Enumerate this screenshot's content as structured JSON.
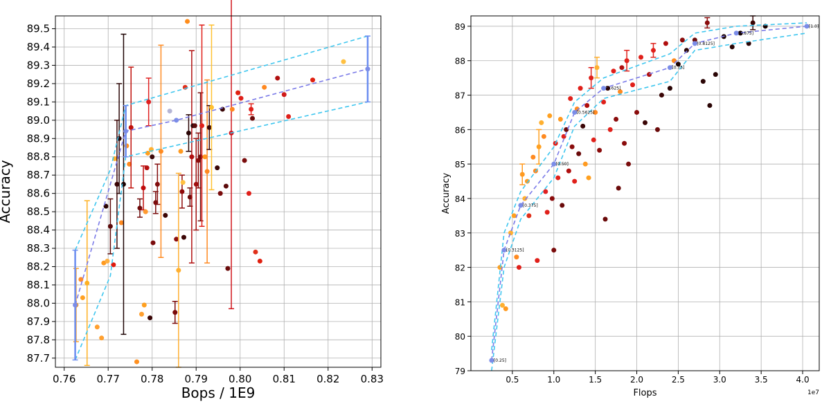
{
  "chart_data": [
    {
      "type": "scatter",
      "xlabel": "Bops / 1E9",
      "ylabel": "Accuracy",
      "xlim": [
        0.758,
        0.832
      ],
      "ylim": [
        87.65,
        89.57
      ],
      "xticks": [
        "0.76",
        "0.77",
        "0.78",
        "0.79",
        "0.80",
        "0.81",
        "0.82",
        "0.83"
      ],
      "yticks": [
        "87.7",
        "87.8",
        "87.9",
        "88.0",
        "88.1",
        "88.2",
        "88.3",
        "88.4",
        "88.5",
        "88.6",
        "88.7",
        "88.8",
        "88.9",
        "89.0",
        "89.1",
        "89.2",
        "89.3",
        "89.4",
        "89.5"
      ],
      "grid": true,
      "points": [
        {
          "x": 0.7627,
          "y": 87.99,
          "c": "#ff9c1a",
          "e": 0.2
        },
        {
          "x": 0.7638,
          "y": 88.13,
          "c": "#ff8a2a"
        },
        {
          "x": 0.7642,
          "y": 88.03,
          "c": "#ffa020"
        },
        {
          "x": 0.7652,
          "y": 88.11,
          "c": "#ffb020",
          "e": 0.45
        },
        {
          "x": 0.7675,
          "y": 87.87,
          "c": "#ffa030"
        },
        {
          "x": 0.7685,
          "y": 87.81,
          "c": "#ffa030"
        },
        {
          "x": 0.769,
          "y": 88.22,
          "c": "#ff9a20"
        },
        {
          "x": 0.7695,
          "y": 88.53,
          "c": "#2a0505"
        },
        {
          "x": 0.7698,
          "y": 88.23,
          "c": "#ffb040"
        },
        {
          "x": 0.7705,
          "y": 88.42,
          "c": "#5c0b0b",
          "e": 0.15
        },
        {
          "x": 0.7712,
          "y": 88.21,
          "c": "#e0190d"
        },
        {
          "x": 0.7715,
          "y": 88.79,
          "c": "#ffb030"
        },
        {
          "x": 0.772,
          "y": 88.65,
          "c": "#3a0404",
          "e": 0.35
        },
        {
          "x": 0.7725,
          "y": 88.9,
          "c": "#2b0606",
          "e": 0.3
        },
        {
          "x": 0.773,
          "y": 88.44,
          "c": "#ff8a20"
        },
        {
          "x": 0.7735,
          "y": 88.65,
          "c": "#1c0202",
          "e": 0.82
        },
        {
          "x": 0.7742,
          "y": 88.86,
          "c": "#ff9020"
        },
        {
          "x": 0.7748,
          "y": 88.76,
          "c": "#ff8a20"
        },
        {
          "x": 0.7752,
          "y": 88.96,
          "c": "#c0100a",
          "e": 0.33
        },
        {
          "x": 0.7765,
          "y": 87.68,
          "c": "#ff9020"
        },
        {
          "x": 0.7772,
          "y": 88.52,
          "c": "#6e0a0a",
          "e": 0.05
        },
        {
          "x": 0.7776,
          "y": 87.94,
          "c": "#ffa030"
        },
        {
          "x": 0.778,
          "y": 88.63,
          "c": "#c00a0a",
          "e": 0.12
        },
        {
          "x": 0.7782,
          "y": 87.99,
          "c": "#ffa020"
        },
        {
          "x": 0.7785,
          "y": 88.5,
          "c": "#ff9a30"
        },
        {
          "x": 0.7788,
          "y": 88.74,
          "c": "#b51010"
        },
        {
          "x": 0.779,
          "y": 88.82,
          "c": "#ffa020"
        },
        {
          "x": 0.7792,
          "y": 89.1,
          "c": "#e02020",
          "e": 0.13
        },
        {
          "x": 0.7795,
          "y": 87.92,
          "c": "#3a0505"
        },
        {
          "x": 0.7798,
          "y": 88.84,
          "c": "#ffb030"
        },
        {
          "x": 0.78,
          "y": 88.8,
          "c": "#3b0808"
        },
        {
          "x": 0.7802,
          "y": 88.33,
          "c": "#7a0c0c"
        },
        {
          "x": 0.7808,
          "y": 88.55,
          "c": "#7a0c0c",
          "e": 0.06
        },
        {
          "x": 0.7812,
          "y": 88.65,
          "c": "#820d0d",
          "e": 0.11
        },
        {
          "x": 0.782,
          "y": 88.83,
          "c": "#ff8a20",
          "e": 0.58
        },
        {
          "x": 0.783,
          "y": 88.48,
          "c": "#3b0505"
        },
        {
          "x": 0.784,
          "y": 89.05,
          "c": "#b5b5d5"
        },
        {
          "x": 0.7852,
          "y": 87.95,
          "c": "#7a0a0a",
          "e": 0.06
        },
        {
          "x": 0.7855,
          "y": 88.35,
          "c": "#8c0e0e"
        },
        {
          "x": 0.786,
          "y": 88.18,
          "c": "#ffb030",
          "e": 0.53
        },
        {
          "x": 0.7865,
          "y": 88.83,
          "c": "#ff9a20"
        },
        {
          "x": 0.7868,
          "y": 88.61,
          "c": "#8e0a0a",
          "e": 0.09
        },
        {
          "x": 0.787,
          "y": 88.66,
          "c": "#ffc040"
        },
        {
          "x": 0.7872,
          "y": 88.36,
          "c": "#3b0505"
        },
        {
          "x": 0.7875,
          "y": 89.18,
          "c": "#e0301a"
        },
        {
          "x": 0.788,
          "y": 89.54,
          "c": "#ff8c1a"
        },
        {
          "x": 0.7883,
          "y": 88.93,
          "c": "#2a0505",
          "e": 0.1
        },
        {
          "x": 0.7886,
          "y": 88.58,
          "c": "#6b0a0a",
          "e": 0.05
        },
        {
          "x": 0.789,
          "y": 88.8,
          "c": "#b00e0e",
          "e": 0.58
        },
        {
          "x": 0.7893,
          "y": 88.97,
          "c": "#2a0505"
        },
        {
          "x": 0.7897,
          "y": 88.97,
          "c": "#5a0a0a"
        },
        {
          "x": 0.79,
          "y": 88.65,
          "c": "#a00e0e",
          "e": 0.25
        },
        {
          "x": 0.7905,
          "y": 88.78,
          "c": "#8a0c0c",
          "e": 0.15
        },
        {
          "x": 0.791,
          "y": 88.8,
          "c": "#6c0a0a",
          "e": 0.35
        },
        {
          "x": 0.7913,
          "y": 88.97,
          "c": "#e0201a",
          "e": 0.55
        },
        {
          "x": 0.792,
          "y": 88.8,
          "c": "#ff9a20"
        },
        {
          "x": 0.7925,
          "y": 88.72,
          "c": "#ff8820",
          "e": 0.5
        },
        {
          "x": 0.793,
          "y": 88.96,
          "c": "#3a0606",
          "e": 0.12
        },
        {
          "x": 0.7935,
          "y": 89.07,
          "c": "#ffc030",
          "e": 0.45
        },
        {
          "x": 0.7948,
          "y": 88.74,
          "c": "#3a0606"
        },
        {
          "x": 0.7955,
          "y": 88.6,
          "c": "#7a0c0c"
        },
        {
          "x": 0.796,
          "y": 89.06,
          "c": "#3a0606"
        },
        {
          "x": 0.7968,
          "y": 88.64,
          "c": "#5c0b0b"
        },
        {
          "x": 0.7972,
          "y": 88.19,
          "c": "#6a0a0a"
        },
        {
          "x": 0.798,
          "y": 88.93,
          "c": "#d0141a",
          "e": 0.96
        },
        {
          "x": 0.7982,
          "y": 89.06,
          "c": "#ff8820"
        },
        {
          "x": 0.7995,
          "y": 89.15,
          "c": "#e02010"
        },
        {
          "x": 0.8002,
          "y": 89.12,
          "c": "#e0201a"
        },
        {
          "x": 0.801,
          "y": 88.78,
          "c": "#7a0c0c"
        },
        {
          "x": 0.802,
          "y": 88.6,
          "c": "#e0201a"
        },
        {
          "x": 0.8025,
          "y": 89.06,
          "c": "#e0201a",
          "e": 0.03
        },
        {
          "x": 0.8028,
          "y": 89.01,
          "c": "#6a0a0a"
        },
        {
          "x": 0.8035,
          "y": 88.28,
          "c": "#e0301a"
        },
        {
          "x": 0.8045,
          "y": 88.23,
          "c": "#e02010"
        },
        {
          "x": 0.8055,
          "y": 89.18,
          "c": "#ff8820"
        },
        {
          "x": 0.8085,
          "y": 89.23,
          "c": "#b00e0e"
        },
        {
          "x": 0.81,
          "y": 89.14,
          "c": "#d01a1a"
        },
        {
          "x": 0.811,
          "y": 89.02,
          "c": "#e0201a"
        },
        {
          "x": 0.8165,
          "y": 89.22,
          "c": "#e02010"
        },
        {
          "x": 0.8235,
          "y": 89.32,
          "c": "#ffc040"
        }
      ],
      "front_mean": [
        {
          "x": 0.7625,
          "y": 87.99,
          "e": 0.3
        },
        {
          "x": 0.774,
          "y": 88.94,
          "e": 0.14
        },
        {
          "x": 0.7855,
          "y": 89.0
        },
        {
          "x": 0.829,
          "y": 89.28,
          "e": 0.18
        }
      ],
      "front_upper": [
        [
          0.7625,
          88.29
        ],
        [
          0.7705,
          88.73
        ],
        [
          0.774,
          89.08
        ],
        [
          0.829,
          89.46
        ]
      ],
      "front_lower": [
        [
          0.7625,
          87.69
        ],
        [
          0.7705,
          88.15
        ],
        [
          0.774,
          88.8
        ],
        [
          0.829,
          89.1
        ]
      ]
    },
    {
      "type": "scatter",
      "xlabel": "Flops",
      "ylabel": "Accuracy",
      "x_offset_label": "1e7",
      "xlim": [
        0.0,
        4.2
      ],
      "ylim": [
        79.0,
        89.3
      ],
      "xticks": [
        "0.5",
        "1.0",
        "1.5",
        "2.0",
        "2.5",
        "3.0",
        "3.5",
        "4.0"
      ],
      "yticks": [
        "79",
        "80",
        "81",
        "82",
        "83",
        "84",
        "85",
        "86",
        "87",
        "88",
        "89"
      ],
      "grid": true,
      "points": [
        {
          "x": 0.35,
          "y": 82.0,
          "c": "#ffa020"
        },
        {
          "x": 0.38,
          "y": 80.9,
          "c": "#ffb030"
        },
        {
          "x": 0.42,
          "y": 80.8,
          "c": "#ff9a20"
        },
        {
          "x": 0.48,
          "y": 83.0,
          "c": "#ffb030"
        },
        {
          "x": 0.52,
          "y": 83.5,
          "c": "#ffa020"
        },
        {
          "x": 0.55,
          "y": 82.3,
          "c": "#ff8a20"
        },
        {
          "x": 0.58,
          "y": 82.0,
          "c": "#e0201a"
        },
        {
          "x": 0.62,
          "y": 84.7,
          "c": "#ff9a20",
          "e": 0.3
        },
        {
          "x": 0.65,
          "y": 84.0,
          "c": "#ffb030"
        },
        {
          "x": 0.68,
          "y": 84.5,
          "c": "#ff9a20"
        },
        {
          "x": 0.7,
          "y": 83.5,
          "c": "#e0301a"
        },
        {
          "x": 0.75,
          "y": 85.2,
          "c": "#ff8a20"
        },
        {
          "x": 0.78,
          "y": 84.8,
          "c": "#ff8820"
        },
        {
          "x": 0.8,
          "y": 82.2,
          "c": "#e0201a"
        },
        {
          "x": 0.82,
          "y": 85.5,
          "c": "#ffa020",
          "e": 0.5
        },
        {
          "x": 0.85,
          "y": 86.2,
          "c": "#ffb030"
        },
        {
          "x": 0.88,
          "y": 85.8,
          "c": "#ff8a20"
        },
        {
          "x": 0.9,
          "y": 84.2,
          "c": "#e02020"
        },
        {
          "x": 0.92,
          "y": 83.6,
          "c": "#e0201a"
        },
        {
          "x": 0.95,
          "y": 86.4,
          "c": "#ffa020"
        },
        {
          "x": 0.98,
          "y": 84.0,
          "c": "#8a0c0c"
        },
        {
          "x": 1.0,
          "y": 82.5,
          "c": "#7a0c0c"
        },
        {
          "x": 1.02,
          "y": 85.6,
          "c": "#e0201a"
        },
        {
          "x": 1.05,
          "y": 84.6,
          "c": "#e0201a"
        },
        {
          "x": 1.08,
          "y": 86.3,
          "c": "#ff9a20"
        },
        {
          "x": 1.1,
          "y": 83.8,
          "c": "#6a0a0a"
        },
        {
          "x": 1.12,
          "y": 85.8,
          "c": "#e0201a"
        },
        {
          "x": 1.15,
          "y": 86.0,
          "c": "#6a0a0a"
        },
        {
          "x": 1.18,
          "y": 84.8,
          "c": "#b00e0e"
        },
        {
          "x": 1.2,
          "y": 86.9,
          "c": "#e0201a"
        },
        {
          "x": 1.22,
          "y": 85.5,
          "c": "#8a0c0c"
        },
        {
          "x": 1.25,
          "y": 84.5,
          "c": "#e0201a"
        },
        {
          "x": 1.28,
          "y": 86.6,
          "c": "#ff8a20"
        },
        {
          "x": 1.3,
          "y": 85.3,
          "c": "#6a0a0a"
        },
        {
          "x": 1.32,
          "y": 87.2,
          "c": "#e0201a"
        },
        {
          "x": 1.35,
          "y": 86.1,
          "c": "#3a0606"
        },
        {
          "x": 1.38,
          "y": 85.0,
          "c": "#ff9a20"
        },
        {
          "x": 1.4,
          "y": 86.7,
          "c": "#b00e0e"
        },
        {
          "x": 1.42,
          "y": 84.6,
          "c": "#ffa020"
        },
        {
          "x": 1.45,
          "y": 87.5,
          "c": "#e0201a",
          "e": 0.3
        },
        {
          "x": 1.48,
          "y": 85.7,
          "c": "#e0201a"
        },
        {
          "x": 1.5,
          "y": 86.5,
          "c": "#ff8a20"
        },
        {
          "x": 1.52,
          "y": 87.8,
          "c": "#ffb030",
          "e": 0.3
        },
        {
          "x": 1.55,
          "y": 85.4,
          "c": "#8a0c0c"
        },
        {
          "x": 1.6,
          "y": 86.8,
          "c": "#e0201a"
        },
        {
          "x": 1.62,
          "y": 83.4,
          "c": "#6a0a0a"
        },
        {
          "x": 1.65,
          "y": 87.2,
          "c": "#3a0606"
        },
        {
          "x": 1.68,
          "y": 86.0,
          "c": "#e0201a"
        },
        {
          "x": 1.72,
          "y": 87.7,
          "c": "#e0201a"
        },
        {
          "x": 1.75,
          "y": 86.3,
          "c": "#8a0c0c"
        },
        {
          "x": 1.78,
          "y": 84.3,
          "c": "#6a0a0a"
        },
        {
          "x": 1.8,
          "y": 87.1,
          "c": "#ff8a20"
        },
        {
          "x": 1.82,
          "y": 87.8,
          "c": "#b00e0e"
        },
        {
          "x": 1.85,
          "y": 85.6,
          "c": "#8a0c0c"
        },
        {
          "x": 1.88,
          "y": 88.0,
          "c": "#e0201a",
          "e": 0.3
        },
        {
          "x": 1.9,
          "y": 85.0,
          "c": "#7a0c0c"
        },
        {
          "x": 1.95,
          "y": 87.3,
          "c": "#e0201a"
        },
        {
          "x": 2.0,
          "y": 86.5,
          "c": "#8a0c0c"
        },
        {
          "x": 2.05,
          "y": 88.1,
          "c": "#e0201a"
        },
        {
          "x": 2.1,
          "y": 86.2,
          "c": "#3a0606"
        },
        {
          "x": 2.15,
          "y": 87.6,
          "c": "#b00e0e"
        },
        {
          "x": 2.2,
          "y": 88.3,
          "c": "#e0201a",
          "e": 0.2
        },
        {
          "x": 2.25,
          "y": 86.0,
          "c": "#6a0a0a"
        },
        {
          "x": 2.3,
          "y": 87.0,
          "c": "#3a0606"
        },
        {
          "x": 2.35,
          "y": 88.5,
          "c": "#b00e0e"
        },
        {
          "x": 2.4,
          "y": 87.2,
          "c": "#2a0505"
        },
        {
          "x": 2.45,
          "y": 88.0,
          "c": "#ff8a20"
        },
        {
          "x": 2.5,
          "y": 87.9,
          "c": "#1c0202"
        },
        {
          "x": 2.55,
          "y": 88.6,
          "c": "#8a0c0c"
        },
        {
          "x": 2.6,
          "y": 88.3,
          "c": "#2a0505"
        },
        {
          "x": 2.7,
          "y": 88.6,
          "c": "#6a0a0a"
        },
        {
          "x": 2.8,
          "y": 87.4,
          "c": "#2a0505"
        },
        {
          "x": 2.85,
          "y": 89.1,
          "c": "#8a0c0c",
          "e": 0.15
        },
        {
          "x": 2.88,
          "y": 86.7,
          "c": "#2a0505"
        },
        {
          "x": 2.95,
          "y": 87.6,
          "c": "#2a0505"
        },
        {
          "x": 3.05,
          "y": 88.7,
          "c": "#1c0202"
        },
        {
          "x": 3.15,
          "y": 88.4,
          "c": "#2a0505"
        },
        {
          "x": 3.25,
          "y": 88.8,
          "c": "#1c0202"
        },
        {
          "x": 3.35,
          "y": 88.5,
          "c": "#2a0505"
        },
        {
          "x": 3.4,
          "y": 89.1,
          "c": "#3a0606",
          "e": 0.2
        },
        {
          "x": 3.55,
          "y": 89.0,
          "c": "#1c0202"
        }
      ],
      "front_mean": [
        {
          "x": 0.25,
          "y": 79.3,
          "label": "0.25"
        },
        {
          "x": 0.4,
          "y": 82.5,
          "label": "0.3125"
        },
        {
          "x": 0.6,
          "y": 83.8,
          "label": "0.375"
        },
        {
          "x": 1.0,
          "y": 85.0,
          "label": "0.50"
        },
        {
          "x": 1.25,
          "y": 86.5,
          "label": "0.5625"
        },
        {
          "x": 1.6,
          "y": 87.2,
          "label": "0.625"
        },
        {
          "x": 2.4,
          "y": 87.8,
          "label": "0.75"
        },
        {
          "x": 2.7,
          "y": 88.5,
          "label": "0.8125"
        },
        {
          "x": 3.2,
          "y": 88.8,
          "label": "0.875"
        },
        {
          "x": 4.05,
          "y": 89.0,
          "label": "1.0"
        }
      ],
      "front_upper": [
        [
          0.25,
          79.6
        ],
        [
          0.4,
          83.0
        ],
        [
          0.6,
          84.2
        ],
        [
          1.0,
          85.5
        ],
        [
          1.25,
          86.8
        ],
        [
          1.6,
          87.5
        ],
        [
          2.4,
          88.2
        ],
        [
          2.7,
          88.8
        ],
        [
          3.2,
          89.0
        ],
        [
          4.05,
          89.1
        ]
      ],
      "front_lower": [
        [
          0.25,
          79.0
        ],
        [
          0.4,
          82.0
        ],
        [
          0.6,
          83.4
        ],
        [
          1.0,
          84.6
        ],
        [
          1.25,
          86.1
        ],
        [
          1.6,
          86.9
        ],
        [
          2.4,
          87.4
        ],
        [
          2.7,
          88.3
        ],
        [
          3.2,
          88.5
        ],
        [
          4.05,
          88.8
        ]
      ]
    }
  ]
}
